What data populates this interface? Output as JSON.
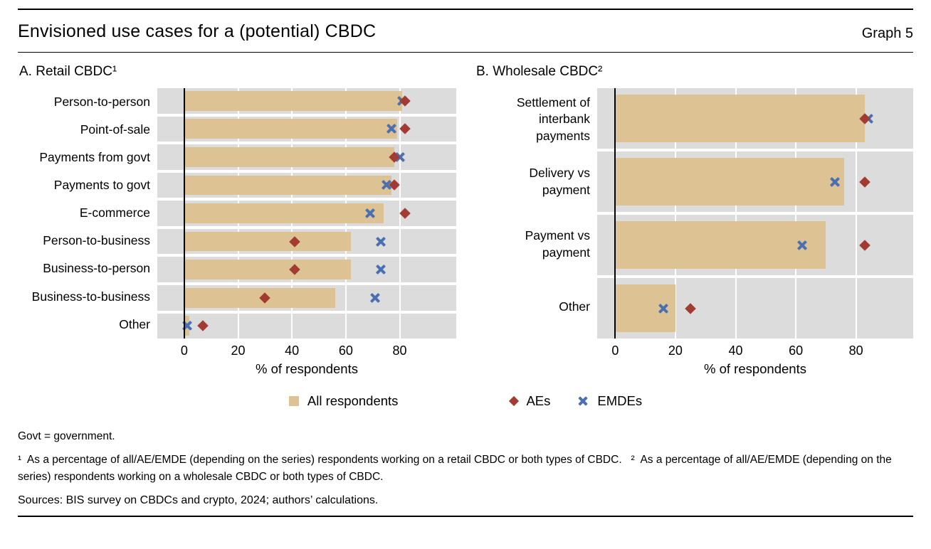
{
  "header": {
    "title": "Envisioned use cases for a (potential) CBDC",
    "graph_label": "Graph 5"
  },
  "legend": [
    {
      "label": "All respondents",
      "marker": "square",
      "color": "#ddc394"
    },
    {
      "label": "AEs",
      "marker": "diamond",
      "color": "#a23c33"
    },
    {
      "label": "EMDEs",
      "marker": "cross",
      "color": "#4a70b2"
    }
  ],
  "colors": {
    "bar": "#ddc394",
    "aes_marker": "#a23c33",
    "emdes_marker": "#4a70b2",
    "plot_background": "#dcdcdc"
  },
  "chart_data": [
    {
      "type": "bar",
      "title": "A. Retail CBDC¹",
      "xlabel": "% of respondents",
      "xticks": [
        0,
        20,
        40,
        60,
        80
      ],
      "xlim": [
        -10,
        101
      ],
      "grid": true,
      "legend_position": "bottom-center",
      "categories": [
        "Person-to-person",
        "Point-of-sale",
        "Payments from govt",
        "Payments to govt",
        "E-commerce",
        "Person-to-business",
        "Business-to-person",
        "Business-to-business",
        "Other"
      ],
      "series": [
        {
          "name": "All respondents",
          "render": "bar",
          "values": [
            81,
            79,
            78,
            77,
            74,
            62,
            62,
            56,
            2
          ]
        },
        {
          "name": "AEs",
          "render": "diamond",
          "values": [
            82,
            82,
            78,
            78,
            82,
            41,
            41,
            30,
            7
          ]
        },
        {
          "name": "EMDEs",
          "render": "cross",
          "values": [
            81,
            77,
            80,
            75,
            69,
            73,
            73,
            71,
            1
          ]
        }
      ]
    },
    {
      "type": "bar",
      "title": "B. Wholesale CBDC²",
      "xlabel": "% of respondents",
      "xticks": [
        0,
        20,
        40,
        60,
        80
      ],
      "xlim": [
        -6,
        99
      ],
      "grid": true,
      "legend_position": "bottom-center",
      "categories": [
        "Settlement of\ninterbank\npayments",
        "Delivery vs\npayment",
        "Payment vs\npayment",
        "Other"
      ],
      "series": [
        {
          "name": "All respondents",
          "render": "bar",
          "values": [
            83,
            76,
            70,
            20
          ]
        },
        {
          "name": "AEs",
          "render": "diamond",
          "values": [
            83,
            83,
            83,
            25
          ]
        },
        {
          "name": "EMDEs",
          "render": "cross",
          "values": [
            84,
            73,
            62,
            16
          ]
        }
      ]
    }
  ],
  "footnotes": {
    "abbrev": "Govt = government.",
    "note": "¹  As a percentage of all/AE/EMDE (depending on the series) respondents working on a retail CBDC or both types of CBDC.   ²  As a percentage of all/AE/EMDE (depending on the series) respondents working on a wholesale CBDC or both types of CBDC.",
    "sources": "Sources: BIS survey on CBDCs and crypto, 2024; authors’ calculations."
  }
}
